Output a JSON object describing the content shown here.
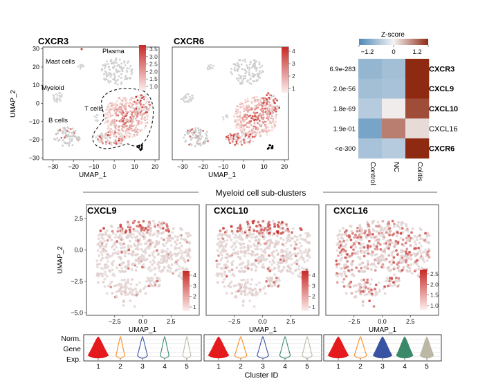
{
  "chart_data": {
    "type": "scatter",
    "top_umaps": [
      {
        "title": "CXCR3",
        "xlabel": "UMAP_1",
        "ylabel": "UMAP_2",
        "xticks": [
          -30,
          -20,
          -10,
          0,
          10,
          20
        ],
        "yticks": [
          30,
          20,
          10,
          0,
          -10,
          -20,
          -30
        ],
        "colorbar_ticks": [
          "3.5",
          "3.0",
          "2.5",
          "2.0",
          "1.5",
          "1.0"
        ],
        "clusters": [
          "Mast cells",
          "Plasma",
          "Myeloid",
          "T cells",
          "B cells"
        ]
      },
      {
        "title": "CXCR6",
        "xlabel": "UMAP_1",
        "xticks": [
          -30,
          -20,
          -10,
          0,
          10,
          20
        ],
        "colorbar_ticks": [
          "4",
          "3",
          "2",
          "1"
        ]
      }
    ],
    "heatmap": {
      "title": "Z-score",
      "scale_ticks": [
        "-1.2",
        "0",
        "1.2"
      ],
      "columns": [
        "Control",
        "NC",
        "Colitis"
      ],
      "rows": [
        {
          "gene": "CXCR3",
          "pvalue": "6.9e-283",
          "bold": true,
          "z": [
            -0.7,
            -0.6,
            1.2
          ]
        },
        {
          "gene": "CXCL9",
          "pvalue": "2.0e-56",
          "bold": true,
          "z": [
            -0.6,
            -0.55,
            1.2
          ]
        },
        {
          "gene": "CXCL10",
          "pvalue": "1.8e-69",
          "bold": true,
          "z": [
            -0.45,
            0.05,
            1.0
          ]
        },
        {
          "gene": "CXCL16",
          "pvalue": "1.9e-01",
          "bold": false,
          "z": [
            -0.9,
            0.7,
            0.15
          ]
        },
        {
          "gene": "CXCR6",
          "pvalue": "<e-300",
          "bold": true,
          "z": [
            -0.55,
            -0.45,
            1.25
          ]
        }
      ]
    },
    "section_title": "Myeloid cell sub-clusters",
    "myeloid_umaps": [
      {
        "title": "CXCL9",
        "xlabel": "UMAP_1",
        "ylabel": "UMAP_2",
        "xticks": [
          "-2.5",
          "0.0",
          "2.5"
        ],
        "yticks": [
          "2.5",
          "0.0",
          "-2.5",
          "-5.0"
        ],
        "colorbar_ticks": [
          "4",
          "3",
          "2",
          "1"
        ]
      },
      {
        "title": "CXCL10",
        "xlabel": "UMAP_1",
        "xticks": [
          "-2.5",
          "0.0",
          "2.5"
        ],
        "colorbar_ticks": [
          "4",
          "3",
          "2",
          "1"
        ]
      },
      {
        "title": "CXCL16",
        "xlabel": "UMAP_1",
        "xticks": [
          "-2.5",
          "0.0",
          "2.5"
        ],
        "colorbar_ticks": [
          "2.5",
          "2.0",
          "1.5",
          "1.0"
        ]
      }
    ],
    "violin": {
      "ylabel": [
        "Norm.",
        "Gene",
        "Exp."
      ],
      "xlabel": "Cluster ID",
      "clusters": [
        "1",
        "2",
        "3",
        "4",
        "5"
      ],
      "colors": [
        "#e41a1c",
        "#ff8c1a",
        "#3953a4",
        "#3a8a6a",
        "#bdb8a6"
      ],
      "panels": [
        {
          "gene": "CXCL9",
          "widths": [
            1.0,
            0.22,
            0.3,
            0.22,
            0.18
          ]
        },
        {
          "gene": "CXCL10",
          "widths": [
            1.0,
            0.45,
            0.4,
            0.35,
            0.3
          ]
        },
        {
          "gene": "CXCL16",
          "widths": [
            1.0,
            0.45,
            0.9,
            0.75,
            0.55
          ]
        }
      ]
    }
  },
  "colors": {
    "heat_low": "#4f89b8",
    "heat_mid": "#f4f4f4",
    "heat_high": "#8e2a12",
    "expr_high": "#c72a26",
    "expr_low": "#ececec"
  }
}
